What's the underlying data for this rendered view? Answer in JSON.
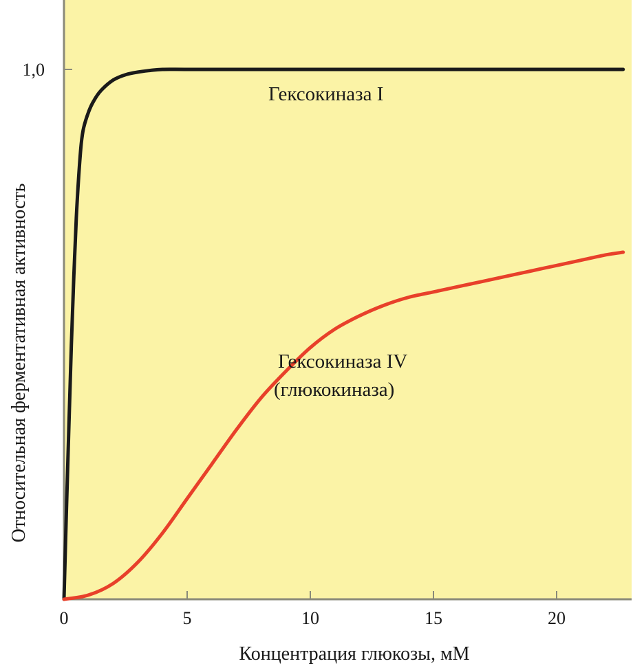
{
  "chart_data": {
    "type": "line",
    "title": "",
    "xlabel": "Концентрация глюкозы, мМ",
    "ylabel": "Относительная ферментативная активность",
    "xlim": [
      0,
      22.7
    ],
    "ylim": [
      0,
      1.08
    ],
    "xticks": [
      0,
      5,
      10,
      15,
      20
    ],
    "xtick_labels": [
      "0",
      "5",
      "10",
      "15",
      "20"
    ],
    "yticks": [
      1.0
    ],
    "ytick_labels": [
      "1,0"
    ],
    "grid": false,
    "background_color": "#fbf3a6",
    "series": [
      {
        "name": "Гексокиназа I",
        "color": "#1a1a1a",
        "x": [
          0,
          0.1,
          0.2,
          0.3,
          0.4,
          0.5,
          0.6,
          0.7,
          0.8,
          1.0,
          1.2,
          1.5,
          2.0,
          2.5,
          3.0,
          3.5,
          4.0,
          5.0,
          7.0,
          10.0,
          15.0,
          20.0,
          22.7
        ],
        "values": [
          0,
          0.17,
          0.33,
          0.48,
          0.61,
          0.72,
          0.8,
          0.86,
          0.89,
          0.92,
          0.94,
          0.96,
          0.98,
          0.99,
          0.995,
          0.998,
          1.0,
          1.0,
          1.0,
          1.0,
          1.0,
          1.0,
          1.0
        ]
      },
      {
        "name": "Гексокиназа IV\n(глюкокиназа)",
        "label_lines": [
          "Гексокиназа IV",
          "(глюкокиназа)"
        ],
        "color": "#e8402a",
        "x": [
          0,
          1,
          2,
          3,
          4,
          5,
          6,
          7,
          8,
          9,
          10,
          11,
          12,
          13,
          14,
          15,
          16,
          17,
          18,
          19,
          20,
          21,
          22,
          22.7
        ],
        "values": [
          0,
          0.008,
          0.03,
          0.07,
          0.125,
          0.19,
          0.255,
          0.32,
          0.38,
          0.43,
          0.475,
          0.51,
          0.535,
          0.555,
          0.57,
          0.58,
          0.59,
          0.6,
          0.61,
          0.62,
          0.63,
          0.64,
          0.65,
          0.655
        ]
      }
    ]
  }
}
